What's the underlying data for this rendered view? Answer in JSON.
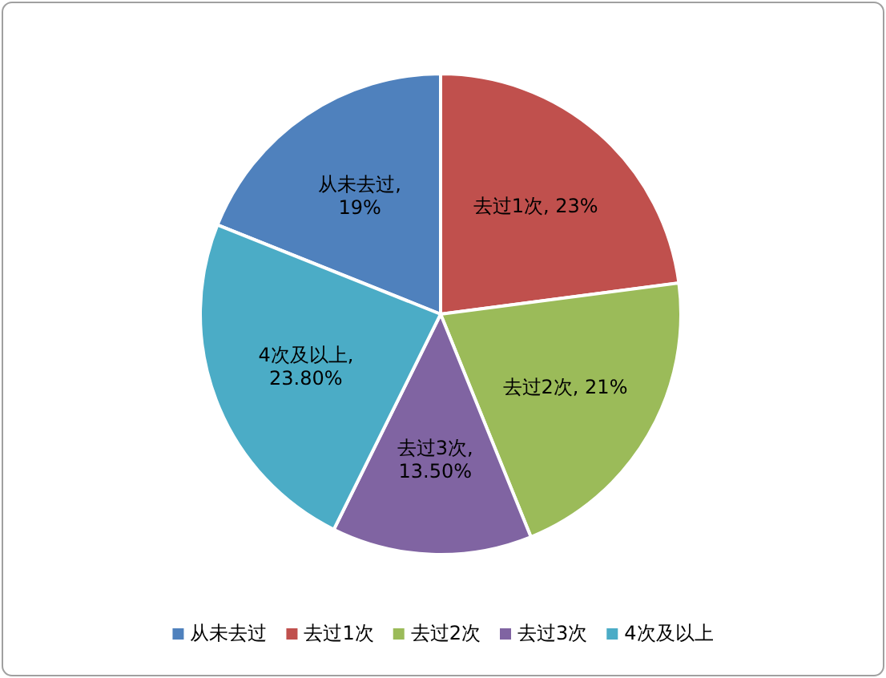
{
  "chart_data": {
    "type": "pie",
    "categories": [
      "从未去过",
      "去过1次",
      "去过2次",
      "去过3次",
      "4次及以上"
    ],
    "values": [
      19,
      23,
      21,
      13.5,
      23.8
    ],
    "value_labels": [
      "从未去过, 19%",
      "去过1次, 23%",
      "去过2次, 21%",
      "去过3次, 13.50%",
      "4次及以上, 23.80%"
    ],
    "colors": [
      "#4f81bd",
      "#c0504d",
      "#9bbb59",
      "#8064a2",
      "#4bacc6"
    ],
    "legend": "bottom"
  }
}
